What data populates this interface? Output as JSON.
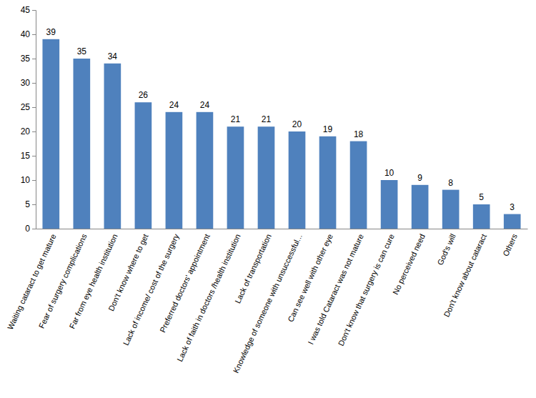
{
  "chart_data": {
    "type": "bar",
    "categories": [
      "Waiting cataract to get mature",
      "Fear of surgery complications",
      "Far from eye health institution",
      "Don't know where to get",
      "Lack of income/ cost of the surgery",
      "Preferred doctors' appointment",
      "Lack of faith in doctors /health institution",
      "Lack of transportation",
      "Knowledge of someone with unsuccessful...",
      "Can see well with other eye",
      "I was told Cataract was not mature",
      "Don't know that surgery is can cure",
      "No perceived need",
      "God's will",
      "Don't know about cataract",
      "Others"
    ],
    "values": [
      39,
      35,
      34,
      26,
      24,
      24,
      21,
      21,
      20,
      19,
      18,
      10,
      9,
      8,
      5,
      3
    ],
    "color": "#4f81bd",
    "ylim": [
      0,
      45
    ],
    "yticks": [
      0,
      5,
      10,
      15,
      20,
      25,
      30,
      35,
      40,
      45
    ],
    "grid": false,
    "data_labels": true
  }
}
